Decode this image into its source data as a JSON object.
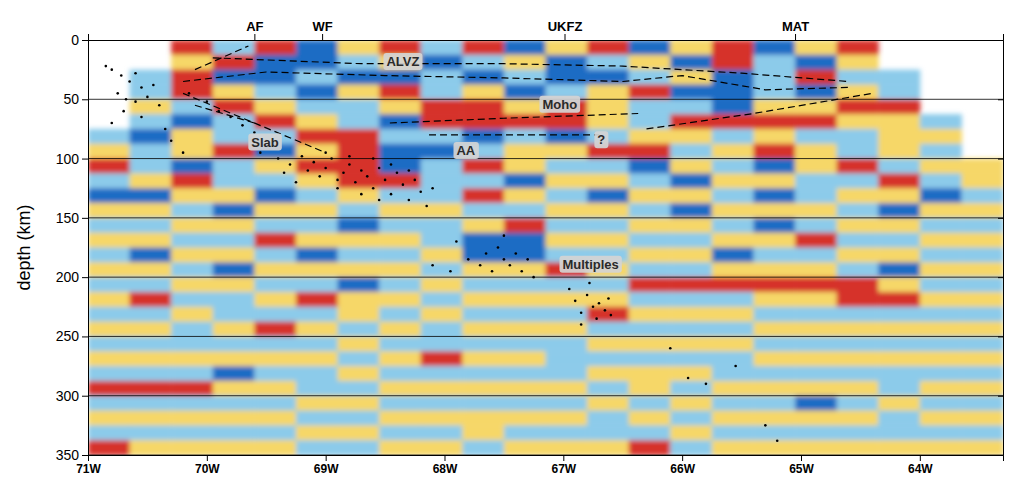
{
  "chart_data": {
    "type": "heatmap",
    "y_label": "depth (km)",
    "xlim": [
      -71,
      -63.3
    ],
    "ylim": [
      0,
      350
    ],
    "xticks": [
      {
        "value": -71,
        "label": "71W"
      },
      {
        "value": -70,
        "label": "70W"
      },
      {
        "value": -69,
        "label": "69W"
      },
      {
        "value": -68,
        "label": "68W"
      },
      {
        "value": -67,
        "label": "67W"
      },
      {
        "value": -66,
        "label": "66W"
      },
      {
        "value": -65,
        "label": "65W"
      },
      {
        "value": -64,
        "label": "64W"
      }
    ],
    "x2ticks": [
      {
        "value": -69.6,
        "label": "AF"
      },
      {
        "value": -69.03,
        "label": "WF"
      },
      {
        "value": -66.99,
        "label": "UKFZ"
      },
      {
        "value": -65.05,
        "label": "MAT"
      }
    ],
    "yticks": [
      0,
      50,
      100,
      150,
      200,
      250,
      300,
      350
    ],
    "grid": true,
    "zlim": [
      -2,
      2
    ],
    "cell_x": [
      -71,
      -70.65,
      -70.3,
      -69.95,
      -69.6,
      -69.25,
      -68.9,
      -68.55,
      -68.2,
      -67.85,
      -67.5,
      -67.15,
      -66.8,
      -66.45,
      -66.1,
      -65.75,
      -65.4,
      -65.05,
      -64.7,
      -64.35,
      -64.0,
      -63.65,
      -63.3
    ],
    "cell_y": [
      0,
      12.5,
      25,
      37.5,
      50,
      62.5,
      75,
      87.5,
      100,
      112.5,
      125,
      137.5,
      150,
      162.5,
      175,
      187.5,
      200,
      212.5,
      225,
      237.5,
      250,
      262.5,
      275,
      287.5,
      300,
      312.5,
      325,
      337.5,
      350
    ],
    "cells": [
      [
        null,
        null,
        2,
        -1,
        2,
        -2,
        1,
        2,
        -1,
        2,
        -2,
        1,
        2,
        -2,
        1,
        2,
        -2,
        1,
        2,
        null,
        null,
        null
      ],
      [
        null,
        null,
        1,
        2,
        -2,
        -2,
        -1,
        1,
        -2,
        -1,
        1,
        -2,
        -1,
        1,
        -2,
        2,
        -1,
        -2,
        1,
        null,
        null,
        null
      ],
      [
        null,
        -1,
        2,
        -2,
        -2,
        -1,
        -2,
        -2,
        -1,
        -2,
        -1,
        -2,
        -2,
        -1,
        1,
        -2,
        -1,
        2,
        -1,
        -1,
        null,
        null
      ],
      [
        null,
        -1,
        2,
        1,
        -1,
        -2,
        1,
        2,
        -1,
        1,
        -2,
        -1,
        1,
        2,
        -2,
        -2,
        -1,
        -2,
        1,
        -1,
        null,
        null
      ],
      [
        null,
        1,
        -1,
        2,
        1,
        -1,
        -1,
        1,
        2,
        2,
        1,
        2,
        1,
        -1,
        -1,
        -2,
        1,
        1,
        2,
        2,
        null,
        null
      ],
      [
        null,
        -1,
        -2,
        -1,
        2,
        1,
        -1,
        -2,
        2,
        2,
        2,
        2,
        1,
        -1,
        2,
        2,
        2,
        2,
        1,
        1,
        -1,
        null
      ],
      [
        -1,
        -2,
        1,
        -1,
        -1,
        2,
        2,
        -1,
        -1,
        -2,
        -1,
        -2,
        -1,
        1,
        1,
        -1,
        1,
        -1,
        -1,
        1,
        1,
        null
      ],
      [
        1,
        -1,
        1,
        2,
        -2,
        1,
        2,
        -2,
        -2,
        -1,
        1,
        1,
        2,
        2,
        -1,
        1,
        2,
        1,
        -1,
        1,
        -1,
        null
      ],
      [
        2,
        -1,
        -2,
        -1,
        1,
        2,
        2,
        -2,
        -1,
        2,
        1,
        -1,
        -1,
        -2,
        1,
        -1,
        -2,
        1,
        2,
        -1,
        1,
        1
      ],
      [
        -1,
        1,
        2,
        -1,
        -1,
        1,
        2,
        2,
        -1,
        -1,
        -2,
        1,
        1,
        -1,
        -2,
        1,
        1,
        -1,
        -1,
        2,
        -1,
        1
      ],
      [
        -2,
        -2,
        1,
        1,
        -2,
        -1,
        1,
        -1,
        -1,
        2,
        1,
        -1,
        -2,
        1,
        1,
        -1,
        -2,
        -1,
        1,
        1,
        -2,
        -1
      ],
      [
        1,
        1,
        -1,
        -2,
        1,
        1,
        -1,
        1,
        1,
        -1,
        -1,
        1,
        1,
        -1,
        -2,
        1,
        1,
        1,
        -1,
        -2,
        1,
        1
      ],
      [
        -1,
        -1,
        1,
        1,
        -1,
        -1,
        -2,
        -1,
        -1,
        1,
        2,
        -1,
        -1,
        1,
        1,
        -1,
        -2,
        -1,
        1,
        1,
        -1,
        -1
      ],
      [
        1,
        1,
        -1,
        -1,
        2,
        1,
        1,
        1,
        -1,
        -2,
        -2,
        1,
        1,
        -1,
        -1,
        1,
        1,
        2,
        -1,
        -1,
        1,
        1
      ],
      [
        -1,
        -2,
        1,
        1,
        -1,
        -2,
        -1,
        -1,
        1,
        -2,
        -2,
        -1,
        -1,
        1,
        1,
        -2,
        -1,
        -1,
        1,
        1,
        -1,
        -1
      ],
      [
        1,
        1,
        -1,
        -2,
        1,
        1,
        1,
        1,
        -1,
        1,
        1,
        2,
        1,
        -1,
        -1,
        1,
        1,
        1,
        -1,
        -2,
        1,
        1
      ],
      [
        -1,
        -1,
        1,
        1,
        -1,
        -1,
        -2,
        -1,
        1,
        -1,
        -1,
        -1,
        -1,
        2,
        2,
        2,
        2,
        2,
        2,
        1,
        -1,
        -1
      ],
      [
        1,
        2,
        -1,
        -1,
        1,
        2,
        1,
        1,
        -1,
        1,
        1,
        1,
        1,
        -1,
        -1,
        -1,
        1,
        1,
        2,
        2,
        1,
        1
      ],
      [
        -1,
        -1,
        1,
        -1,
        -1,
        -1,
        1,
        -1,
        1,
        -1,
        -1,
        -1,
        2,
        1,
        1,
        1,
        -1,
        -1,
        -1,
        -1,
        -1,
        -1
      ],
      [
        1,
        1,
        -1,
        1,
        2,
        1,
        -1,
        1,
        -1,
        1,
        1,
        1,
        -1,
        -1,
        -1,
        -1,
        1,
        1,
        1,
        1,
        1,
        1
      ],
      [
        -1,
        -1,
        -1,
        -1,
        -1,
        -1,
        1,
        -1,
        -1,
        -1,
        -1,
        -1,
        1,
        1,
        1,
        1,
        -1,
        -1,
        -1,
        -1,
        -1,
        -1
      ],
      [
        1,
        1,
        1,
        1,
        1,
        1,
        -1,
        1,
        2,
        1,
        1,
        -1,
        -1,
        -1,
        -1,
        -1,
        1,
        1,
        1,
        1,
        1,
        1
      ],
      [
        -1,
        -1,
        -1,
        -2,
        -1,
        -1,
        1,
        -1,
        -1,
        -1,
        -1,
        -1,
        1,
        1,
        1,
        -1,
        -1,
        -1,
        -1,
        -1,
        -1,
        -1
      ],
      [
        2,
        2,
        2,
        1,
        1,
        -1,
        -1,
        1,
        1,
        1,
        1,
        1,
        -1,
        1,
        -1,
        1,
        1,
        1,
        1,
        -1,
        1,
        1
      ],
      [
        -1,
        -1,
        -1,
        -1,
        -1,
        1,
        1,
        -1,
        -1,
        -1,
        -1,
        -1,
        1,
        -1,
        1,
        -1,
        -1,
        -2,
        -1,
        1,
        -1,
        -1
      ],
      [
        1,
        1,
        1,
        1,
        1,
        -1,
        -1,
        1,
        1,
        1,
        1,
        1,
        -1,
        1,
        -1,
        1,
        1,
        1,
        1,
        -1,
        1,
        1
      ],
      [
        -1,
        -1,
        -1,
        -1,
        -1,
        1,
        1,
        -1,
        -1,
        1,
        -1,
        -1,
        -1,
        -1,
        1,
        -1,
        -1,
        -1,
        -1,
        -1,
        -1,
        -1
      ],
      [
        2,
        1,
        1,
        1,
        1,
        -1,
        -1,
        1,
        1,
        -1,
        1,
        1,
        1,
        2,
        -1,
        1,
        1,
        1,
        1,
        1,
        1,
        1
      ]
    ],
    "series": [
      {
        "type": "scatter",
        "marker": "circle",
        "color": "#000000",
        "x": [
          -70.85,
          -70.8,
          -70.72,
          -70.65,
          -70.6,
          -70.55,
          -70.75,
          -70.68,
          -70.6,
          -70.5,
          -70.45,
          -70.4,
          -70.7,
          -70.8,
          -70.55,
          -70.35,
          -70.3,
          -70.2,
          -70.15,
          -70.0,
          -69.9,
          -69.8,
          -69.7,
          -69.6,
          -69.5,
          -69.55,
          -69.4,
          -69.3,
          -69.2,
          -69.15,
          -69.1,
          -69.05,
          -69.0,
          -68.95,
          -68.9,
          -68.85,
          -68.8,
          -68.75,
          -68.7,
          -68.65,
          -68.6,
          -68.55,
          -68.5,
          -68.45,
          -68.4,
          -68.35,
          -68.3,
          -68.25,
          -68.2,
          -68.15,
          -68.1,
          -69.25,
          -69.0,
          -68.9,
          -68.7,
          -68.6,
          -68.45,
          -68.3,
          -68.8,
          -69.35,
          -68.55,
          -67.9,
          -67.8,
          -67.7,
          -67.65,
          -67.6,
          -67.55,
          -67.5,
          -67.45,
          -67.4,
          -67.35,
          -67.3,
          -67.5,
          -67.25,
          -68.1,
          -67.95,
          -66.95,
          -66.9,
          -66.85,
          -66.8,
          -66.75,
          -66.72,
          -66.7,
          -66.65,
          -66.6,
          -66.85,
          -66.78,
          -66.62,
          -66.1,
          -65.95,
          -65.8,
          -65.55,
          -65.3,
          -65.2
        ],
        "values": [
          22,
          25,
          30,
          35,
          28,
          40,
          45,
          50,
          52,
          48,
          38,
          55,
          60,
          70,
          65,
          75,
          85,
          95,
          45,
          52,
          60,
          65,
          72,
          78,
          85,
          95,
          100,
          105,
          98,
          110,
          103,
          115,
          108,
          100,
          118,
          112,
          105,
          120,
          110,
          115,
          125,
          108,
          118,
          130,
          112,
          122,
          135,
          118,
          128,
          140,
          125,
          120,
          95,
          125,
          130,
          100,
          105,
          110,
          98,
          112,
          135,
          170,
          185,
          190,
          180,
          195,
          175,
          185,
          190,
          180,
          195,
          185,
          165,
          200,
          190,
          195,
          210,
          220,
          230,
          215,
          225,
          235,
          222,
          228,
          232,
          240,
          205,
          218,
          260,
          285,
          290,
          275,
          325,
          338
        ]
      },
      {
        "type": "line",
        "line_style": "dashed",
        "color": "#000000",
        "x": [
          -69.95,
          -68.7,
          -67.5,
          -66.5,
          -65.5,
          -64.6
        ],
        "values": [
          15,
          20,
          20,
          22,
          28,
          35
        ]
      },
      {
        "type": "line",
        "line_style": "dashed",
        "color": "#000000",
        "x": [
          -70.2,
          -69.5,
          -68.5,
          -67.5,
          -66.5,
          -66.0,
          -65.3,
          -64.6
        ],
        "values": [
          35,
          27,
          30,
          32,
          35,
          30,
          42,
          40
        ]
      },
      {
        "type": "line",
        "line_style": "dashed",
        "color": "#000000",
        "x": [
          -70.1,
          -69.65
        ],
        "values": [
          25,
          5
        ]
      },
      {
        "type": "line",
        "line_style": "dashed",
        "color": "#000000",
        "x": [
          -70.2,
          -69.0
        ],
        "values": [
          45,
          95
        ]
      },
      {
        "type": "line",
        "line_style": "dashed",
        "color": "#000000",
        "x": [
          -70.1,
          -69.6
        ],
        "values": [
          55,
          70
        ]
      },
      {
        "type": "line",
        "line_style": "dashed",
        "color": "#000000",
        "x": [
          -68.46,
          -67.5,
          -66.37
        ],
        "values": [
          70,
          66,
          62
        ]
      },
      {
        "type": "line",
        "line_style": "dashed",
        "color": "#000000",
        "x": [
          -68.13,
          -66.7
        ],
        "values": [
          80,
          80
        ]
      },
      {
        "type": "line",
        "line_style": "dashed",
        "color": "#000000",
        "x": [
          -66.3,
          -65.4,
          -64.4
        ],
        "values": [
          75,
          62,
          45
        ]
      }
    ],
    "annotations": [
      {
        "text": "ALVZ",
        "x": -68.35,
        "y": 19
      },
      {
        "text": "Moho",
        "x": -67.03,
        "y": 55
      },
      {
        "text": "Slab",
        "x": -69.51,
        "y": 87
      },
      {
        "text": "AA",
        "x": -67.82,
        "y": 94
      },
      {
        "text": "?",
        "x": -66.68,
        "y": 85
      },
      {
        "text": "Multiples",
        "x": -66.77,
        "y": 190
      }
    ]
  }
}
